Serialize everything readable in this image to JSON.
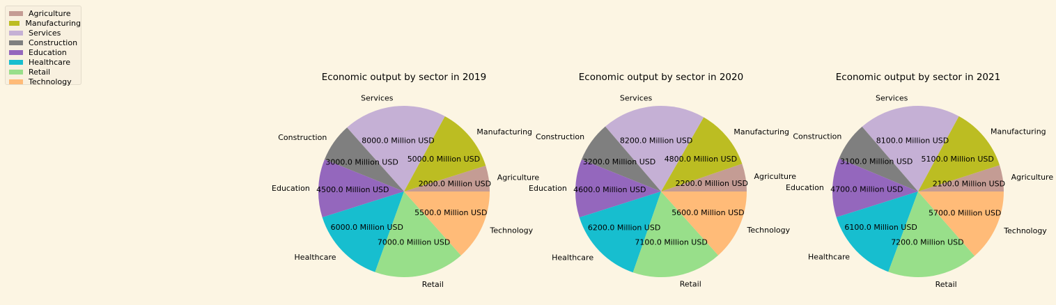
{
  "chart_data": [
    {
      "type": "pie",
      "title": "Economic output by sector in 2019",
      "unit": "Million USD",
      "categories": [
        "Agriculture",
        "Manufacturing",
        "Services",
        "Construction",
        "Education",
        "Healthcare",
        "Retail",
        "Technology"
      ],
      "values": [
        2000.0,
        5000.0,
        8000.0,
        3000.0,
        4500.0,
        6000.0,
        7000.0,
        5500.0
      ],
      "value_labels": [
        "2000.0 Million USD",
        "5000.0 Million USD",
        "8000.0 Million USD",
        "3000.0 Million USD",
        "4500.0 Million USD",
        "6000.0 Million USD",
        "7000.0 Million USD",
        "5500.0 Million USD"
      ]
    },
    {
      "type": "pie",
      "title": "Economic output by sector in 2020",
      "unit": "Million USD",
      "categories": [
        "Agriculture",
        "Manufacturing",
        "Services",
        "Construction",
        "Education",
        "Healthcare",
        "Retail",
        "Technology"
      ],
      "values": [
        2200.0,
        4800.0,
        8200.0,
        3200.0,
        4600.0,
        6200.0,
        7100.0,
        5600.0
      ],
      "value_labels": [
        "2200.0 Million USD",
        "4800.0 Million USD",
        "8200.0 Million USD",
        "3200.0 Million USD",
        "4600.0 Million USD",
        "6200.0 Million USD",
        "7100.0 Million USD",
        "5600.0 Million USD"
      ]
    },
    {
      "type": "pie",
      "title": "Economic output by sector in 2021",
      "unit": "Million USD",
      "categories": [
        "Agriculture",
        "Manufacturing",
        "Services",
        "Construction",
        "Education",
        "Healthcare",
        "Retail",
        "Technology"
      ],
      "values": [
        2100.0,
        5100.0,
        8100.0,
        3100.0,
        4700.0,
        6100.0,
        7200.0,
        5700.0
      ],
      "value_labels": [
        "2100.0 Million USD",
        "5100.0 Million USD",
        "8100.0 Million USD",
        "3100.0 Million USD",
        "4700.0 Million USD",
        "6100.0 Million USD",
        "7200.0 Million USD",
        "5700.0 Million USD"
      ]
    }
  ],
  "legend": {
    "placement": "top-left",
    "entries": [
      "Agriculture",
      "Manufacturing",
      "Services",
      "Construction",
      "Education",
      "Healthcare",
      "Retail",
      "Technology"
    ]
  },
  "colors": {
    "background": "#fcf5e3",
    "Agriculture": "#c49c94",
    "Manufacturing": "#bcbd22",
    "Services": "#c5b0d5",
    "Construction": "#7f7f7f",
    "Education": "#9467bd",
    "Healthcare": "#17becf",
    "Retail": "#98df8a",
    "Technology": "#ffbb78"
  }
}
